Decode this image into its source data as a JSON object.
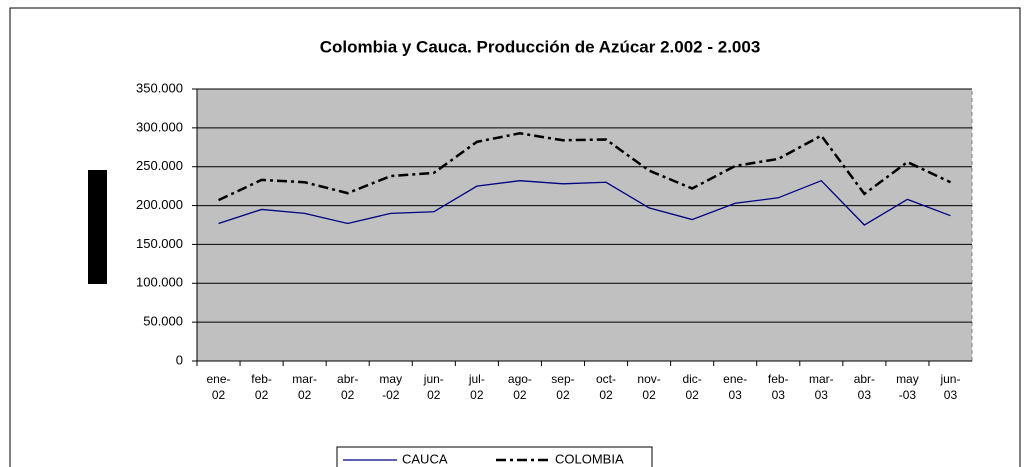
{
  "chart_data": {
    "type": "line",
    "title": "Colombia y Cauca. Producción de Azúcar 2.002 - 2.003",
    "categories": [
      "ene-02",
      "feb-02",
      "mar-02",
      "abr-02",
      "may-02",
      "jun-02",
      "jul-02",
      "ago-02",
      "sep-02",
      "oct-02",
      "nov-02",
      "dic-02",
      "ene-03",
      "feb-03",
      "mar-03",
      "abr-03",
      "may-03",
      "jun-03"
    ],
    "series": [
      {
        "name": "CAUCA",
        "color": "#000080",
        "values": [
          177000,
          195000,
          190000,
          177000,
          190000,
          192000,
          225000,
          232000,
          228000,
          230000,
          197000,
          182000,
          203000,
          210000,
          232000,
          175000,
          208000,
          187000
        ]
      },
      {
        "name": "COLOMBIA",
        "color": "#000000",
        "values": [
          207000,
          233000,
          230000,
          216000,
          238000,
          242000,
          282000,
          293000,
          284000,
          285000,
          245000,
          222000,
          251000,
          260000,
          290000,
          215000,
          256000,
          230000
        ]
      }
    ],
    "ylim": [
      0,
      350000
    ],
    "yticks": [
      {
        "value": 0,
        "label": "0"
      },
      {
        "value": 50000,
        "label": "50.000"
      },
      {
        "value": 100000,
        "label": "100.000"
      },
      {
        "value": 150000,
        "label": "150.000"
      },
      {
        "value": 200000,
        "label": "200.000"
      },
      {
        "value": 250000,
        "label": "250.000"
      },
      {
        "value": 300000,
        "label": "300.000"
      },
      {
        "value": 350000,
        "label": "350.000"
      }
    ],
    "grid": true
  }
}
